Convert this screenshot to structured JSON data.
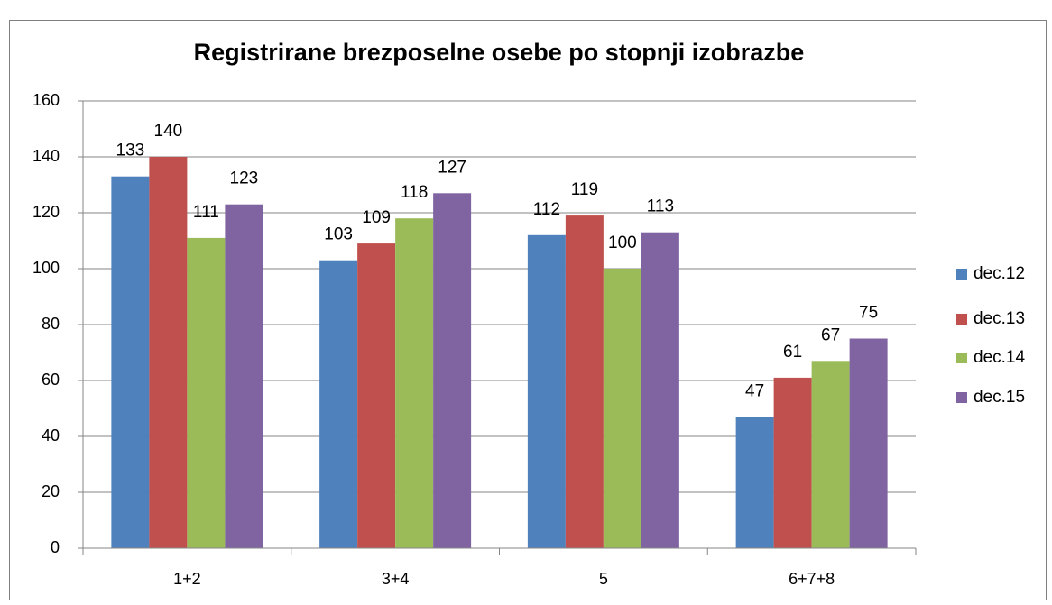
{
  "chart_data": {
    "type": "bar",
    "title": "Registrirane brezposelne osebe po stopnji izobrazbe",
    "categories": [
      "1+2",
      "3+4",
      "5",
      "6+7+8"
    ],
    "series": [
      {
        "name": "dec.12",
        "color": "#4f81bd",
        "values": [
          133,
          103,
          112,
          47
        ]
      },
      {
        "name": "dec.13",
        "color": "#c0504d",
        "values": [
          140,
          109,
          119,
          61
        ]
      },
      {
        "name": "dec.14",
        "color": "#9bbb59",
        "values": [
          111,
          118,
          100,
          67
        ]
      },
      {
        "name": "dec.15",
        "color": "#8064a2",
        "values": [
          123,
          127,
          113,
          75
        ]
      }
    ],
    "ylim": [
      0,
      160
    ],
    "yticks": [
      0,
      20,
      40,
      60,
      80,
      100,
      120,
      140,
      160
    ],
    "grid": true,
    "legend": "right"
  }
}
